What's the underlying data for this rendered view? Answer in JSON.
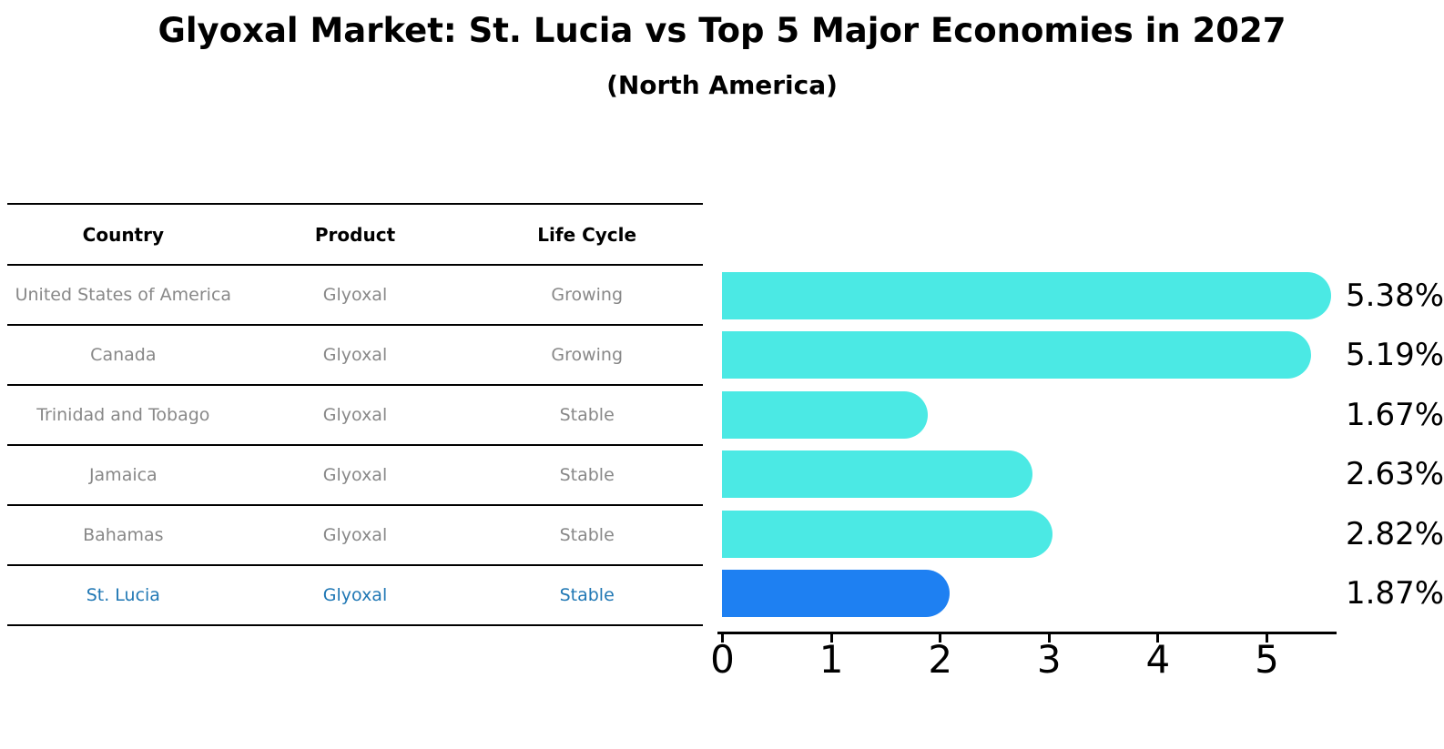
{
  "title": "Glyoxal Market: St. Lucia vs Top 5 Major Economies in 2027",
  "subtitle": "(North America)",
  "table": {
    "headers": [
      "Country",
      "Product",
      "Life Cycle"
    ],
    "rows": [
      {
        "country": "United States of America",
        "product": "Glyoxal",
        "life_cycle": "Growing"
      },
      {
        "country": "Canada",
        "product": "Glyoxal",
        "life_cycle": "Growing"
      },
      {
        "country": "Trinidad and Tobago",
        "product": "Glyoxal",
        "life_cycle": "Stable"
      },
      {
        "country": "Jamaica",
        "product": "Glyoxal",
        "life_cycle": "Stable"
      },
      {
        "country": "Bahamas",
        "product": "Glyoxal",
        "life_cycle": "Stable"
      },
      {
        "country": "St. Lucia",
        "product": "Glyoxal",
        "life_cycle": "Stable"
      }
    ]
  },
  "chart_data": {
    "type": "bar",
    "orientation": "horizontal",
    "title": "Glyoxal Market: St. Lucia vs Top 5 Major Economies in 2027 (North America)",
    "categories": [
      "United States of America",
      "Canada",
      "Trinidad and Tobago",
      "Jamaica",
      "Bahamas",
      "St. Lucia"
    ],
    "values": [
      5.38,
      5.19,
      1.67,
      2.63,
      2.82,
      1.87
    ],
    "labels": [
      "5.38%",
      "5.19%",
      "1.67%",
      "2.63%",
      "2.82%",
      "1.87%"
    ],
    "xlabel": "",
    "ylabel": "",
    "xlim": [
      0,
      5.65
    ],
    "x_ticks": [
      0,
      1,
      2,
      3,
      4,
      5
    ],
    "grid": "off",
    "legend": "none",
    "highlight_index": 5
  },
  "colors": {
    "bar": "#4BE9E4",
    "highlight_bar": "#1E80F2",
    "highlight_text": "#1f77b4",
    "table_text": "#888888",
    "header_text": "#000000",
    "axis": "#000000",
    "value_label": "#000000"
  }
}
